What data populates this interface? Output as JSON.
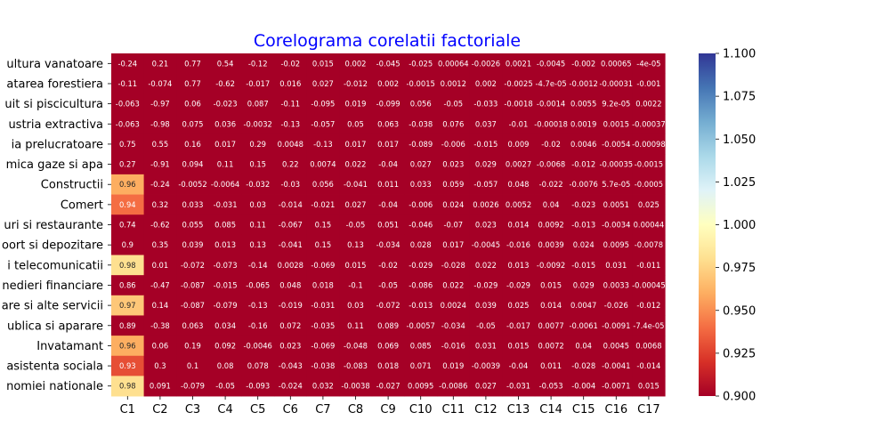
{
  "chart_data": {
    "type": "heatmap",
    "title": "Corelograma corelatii factoriale",
    "columns": [
      "C1",
      "C2",
      "C3",
      "C4",
      "C5",
      "C6",
      "C7",
      "C8",
      "C9",
      "C10",
      "C11",
      "C12",
      "C13",
      "C14",
      "C15",
      "C16",
      "C17"
    ],
    "rows": [
      "ultura vanatoare",
      "atarea forestiera",
      "uit si piscicultura",
      "ustria extractiva",
      "ia prelucratoare",
      "mica gaze si apa",
      "Constructii",
      "Comert",
      "uri si restaurante",
      "oort si depozitare",
      "i telecomunicatii",
      "nedieri financiare",
      "are si alte servicii",
      "ublica si aparare",
      "Invatamant",
      "asistenta sociala",
      "nomiei nationale"
    ],
    "values": [
      [
        -0.24,
        0.21,
        0.77,
        0.54,
        -0.12,
        -0.02,
        0.015,
        0.002,
        -0.045,
        -0.025,
        0.00064,
        -0.0026,
        0.0021,
        -0.0045,
        -0.002,
        0.00065,
        -4e-05
      ],
      [
        -0.11,
        -0.074,
        0.77,
        -0.62,
        -0.017,
        0.016,
        0.027,
        -0.012,
        0.002,
        -0.0015,
        0.0012,
        0.002,
        -0.0025,
        -4.7e-05,
        -0.0012,
        -0.00031,
        -0.001
      ],
      [
        -0.063,
        -0.97,
        0.06,
        -0.023,
        0.087,
        -0.11,
        -0.095,
        0.019,
        -0.099,
        0.056,
        -0.05,
        -0.033,
        -0.0018,
        -0.0014,
        0.0055,
        9.2e-05,
        0.0022
      ],
      [
        -0.063,
        -0.98,
        0.075,
        0.036,
        -0.0032,
        -0.13,
        -0.057,
        0.05,
        0.063,
        -0.038,
        0.076,
        0.037,
        -0.01,
        -0.00018,
        0.0019,
        0.0015,
        -0.00037
      ],
      [
        0.75,
        0.55,
        0.16,
        0.017,
        0.29,
        0.0048,
        -0.13,
        0.017,
        0.017,
        -0.089,
        -0.006,
        -0.015,
        0.009,
        -0.02,
        0.0046,
        -0.0054,
        -0.00098
      ],
      [
        0.27,
        -0.91,
        0.094,
        0.11,
        0.15,
        0.22,
        0.0074,
        0.022,
        -0.04,
        0.027,
        0.023,
        0.029,
        0.0027,
        -0.0068,
        -0.012,
        -0.00035,
        -0.0015
      ],
      [
        0.96,
        -0.24,
        -0.0052,
        -0.0064,
        -0.032,
        -0.03,
        0.056,
        -0.041,
        0.011,
        0.033,
        0.059,
        -0.057,
        0.048,
        -0.022,
        -0.0076,
        5.7e-05,
        -0.0005
      ],
      [
        0.94,
        0.32,
        0.033,
        -0.031,
        0.03,
        -0.014,
        -0.021,
        0.027,
        -0.04,
        -0.006,
        0.024,
        0.0026,
        0.0052,
        0.04,
        -0.023,
        0.0051,
        0.025
      ],
      [
        0.74,
        -0.62,
        0.055,
        0.085,
        0.11,
        -0.067,
        0.15,
        -0.05,
        0.051,
        -0.046,
        -0.07,
        0.023,
        0.014,
        0.0092,
        -0.013,
        -0.0034,
        0.00044
      ],
      [
        0.9,
        0.35,
        0.039,
        0.013,
        0.13,
        -0.041,
        0.15,
        0.13,
        -0.034,
        0.028,
        0.017,
        -0.0045,
        -0.016,
        0.0039,
        0.024,
        0.0095,
        -0.0078
      ],
      [
        0.98,
        0.01,
        -0.072,
        -0.073,
        -0.14,
        0.0028,
        -0.069,
        0.015,
        -0.02,
        -0.029,
        -0.028,
        0.022,
        0.013,
        -0.0092,
        -0.015,
        0.031,
        -0.011
      ],
      [
        0.86,
        -0.47,
        -0.087,
        -0.015,
        -0.065,
        0.048,
        0.018,
        -0.1,
        -0.05,
        -0.086,
        0.022,
        -0.029,
        -0.029,
        0.015,
        0.029,
        0.0033,
        -0.00045
      ],
      [
        0.97,
        0.14,
        -0.087,
        -0.079,
        -0.13,
        -0.019,
        -0.031,
        0.03,
        -0.072,
        -0.013,
        0.0024,
        0.039,
        0.025,
        0.014,
        0.0047,
        -0.026,
        -0.012
      ],
      [
        0.89,
        -0.38,
        0.063,
        0.034,
        -0.16,
        0.072,
        -0.035,
        0.11,
        0.089,
        -0.0057,
        -0.034,
        -0.05,
        -0.017,
        0.0077,
        -0.0061,
        -0.0091,
        -7.4e-05
      ],
      [
        0.96,
        0.06,
        0.19,
        0.092,
        -0.0046,
        0.023,
        -0.069,
        -0.048,
        0.069,
        0.085,
        -0.016,
        0.031,
        0.015,
        0.0072,
        0.04,
        0.0045,
        0.0068
      ],
      [
        0.93,
        0.3,
        0.1,
        0.08,
        0.078,
        -0.043,
        -0.038,
        -0.083,
        0.018,
        0.071,
        0.019,
        -0.0039,
        -0.04,
        0.011,
        -0.028,
        -0.0041,
        -0.014
      ],
      [
        0.98,
        0.091,
        -0.079,
        -0.05,
        -0.093,
        -0.024,
        0.032,
        -0.0038,
        -0.027,
        0.0095,
        -0.0086,
        0.027,
        -0.031,
        -0.053,
        -0.004,
        -0.0071,
        0.015
      ]
    ],
    "cell_labels": [
      [
        "-0.24",
        "0.21",
        "0.77",
        "0.54",
        "-0.12",
        "-0.02",
        "0.015",
        "0.002",
        "-0.045",
        "-0.025",
        "0.00064",
        "-0.0026",
        "0.0021",
        "-0.0045",
        "-0.002",
        "0.00065",
        "-4e-05"
      ],
      [
        "-0.11",
        "-0.074",
        "0.77",
        "-0.62",
        "-0.017",
        "0.016",
        "0.027",
        "-0.012",
        "0.002",
        "-0.0015",
        "0.0012",
        "0.002",
        "-0.0025",
        "-4.7e-05",
        "-0.0012",
        "-0.00031",
        "-0.001"
      ],
      [
        "-0.063",
        "-0.97",
        "0.06",
        "-0.023",
        "0.087",
        "-0.11",
        "-0.095",
        "0.019",
        "-0.099",
        "0.056",
        "-0.05",
        "-0.033",
        "-0.0018",
        "-0.0014",
        "0.0055",
        "9.2e-05",
        "0.0022"
      ],
      [
        "-0.063",
        "-0.98",
        "0.075",
        "0.036",
        "-0.0032",
        "-0.13",
        "-0.057",
        "0.05",
        "0.063",
        "-0.038",
        "0.076",
        "0.037",
        "-0.01",
        "-0.00018",
        "0.0019",
        "0.0015",
        "-0.00037"
      ],
      [
        "0.75",
        "0.55",
        "0.16",
        "0.017",
        "0.29",
        "0.0048",
        "-0.13",
        "0.017",
        "0.017",
        "-0.089",
        "-0.006",
        "-0.015",
        "0.009",
        "-0.02",
        "0.0046",
        "-0.0054",
        "-0.00098"
      ],
      [
        "0.27",
        "-0.91",
        "0.094",
        "0.11",
        "0.15",
        "0.22",
        "0.0074",
        "0.022",
        "-0.04",
        "0.027",
        "0.023",
        "0.029",
        "0.0027",
        "-0.0068",
        "-0.012",
        "-0.00035",
        "-0.0015"
      ],
      [
        "0.96",
        "-0.24",
        "-0.0052",
        "-0.0064",
        "-0.032",
        "-0.03",
        "0.056",
        "-0.041",
        "0.011",
        "0.033",
        "0.059",
        "-0.057",
        "0.048",
        "-0.022",
        "-0.0076",
        "5.7e-05",
        "-0.0005"
      ],
      [
        "0.94",
        "0.32",
        "0.033",
        "-0.031",
        "0.03",
        "-0.014",
        "-0.021",
        "0.027",
        "-0.04",
        "-0.006",
        "0.024",
        "0.0026",
        "0.0052",
        "0.04",
        "-0.023",
        "0.0051",
        "0.025"
      ],
      [
        "0.74",
        "-0.62",
        "0.055",
        "0.085",
        "0.11",
        "-0.067",
        "0.15",
        "-0.05",
        "0.051",
        "-0.046",
        "-0.07",
        "0.023",
        "0.014",
        "0.0092",
        "-0.013",
        "-0.0034",
        "0.00044"
      ],
      [
        "0.9",
        "0.35",
        "0.039",
        "0.013",
        "0.13",
        "-0.041",
        "0.15",
        "0.13",
        "-0.034",
        "0.028",
        "0.017",
        "-0.0045",
        "-0.016",
        "0.0039",
        "0.024",
        "0.0095",
        "-0.0078"
      ],
      [
        "0.98",
        "0.01",
        "-0.072",
        "-0.073",
        "-0.14",
        "0.0028",
        "-0.069",
        "0.015",
        "-0.02",
        "-0.029",
        "-0.028",
        "0.022",
        "0.013",
        "-0.0092",
        "-0.015",
        "0.031",
        "-0.011"
      ],
      [
        "0.86",
        "-0.47",
        "-0.087",
        "-0.015",
        "-0.065",
        "0.048",
        "0.018",
        "-0.1",
        "-0.05",
        "-0.086",
        "0.022",
        "-0.029",
        "-0.029",
        "0.015",
        "0.029",
        "0.0033",
        "-0.00045"
      ],
      [
        "0.97",
        "0.14",
        "-0.087",
        "-0.079",
        "-0.13",
        "-0.019",
        "-0.031",
        "0.03",
        "-0.072",
        "-0.013",
        "0.0024",
        "0.039",
        "0.025",
        "0.014",
        "0.0047",
        "-0.026",
        "-0.012"
      ],
      [
        "0.89",
        "-0.38",
        "0.063",
        "0.034",
        "-0.16",
        "0.072",
        "-0.035",
        "0.11",
        "0.089",
        "-0.0057",
        "-0.034",
        "-0.05",
        "-0.017",
        "0.0077",
        "-0.0061",
        "-0.0091",
        "-7.4e-05"
      ],
      [
        "0.96",
        "0.06",
        "0.19",
        "0.092",
        "-0.0046",
        "0.023",
        "-0.069",
        "-0.048",
        "0.069",
        "0.085",
        "-0.016",
        "0.031",
        "0.015",
        "0.0072",
        "0.04",
        "0.0045",
        "0.0068"
      ],
      [
        "0.93",
        "0.3",
        "0.1",
        "0.08",
        "0.078",
        "-0.043",
        "-0.038",
        "-0.083",
        "0.018",
        "0.071",
        "0.019",
        "-0.0039",
        "-0.04",
        "0.011",
        "-0.028",
        "-0.0041",
        "-0.014"
      ],
      [
        "0.98",
        "0.091",
        "-0.079",
        "-0.05",
        "-0.093",
        "-0.024",
        "0.032",
        "-0.0038",
        "-0.027",
        "0.0095",
        "-0.0086",
        "0.027",
        "-0.031",
        "-0.053",
        "-0.004",
        "-0.0071",
        "0.015"
      ]
    ],
    "color_range": [
      0.9,
      1.1
    ],
    "colormap": "RdYlBu",
    "colorbar": {
      "ticks": [
        "0.900",
        "0.925",
        "0.950",
        "0.975",
        "1.000",
        "1.025",
        "1.050",
        "1.075",
        "1.100"
      ],
      "tick_values": [
        0.9,
        0.925,
        0.95,
        0.975,
        1.0,
        1.025,
        1.05,
        1.075,
        1.1
      ]
    },
    "title_color": "#0000ff",
    "grid": false
  }
}
